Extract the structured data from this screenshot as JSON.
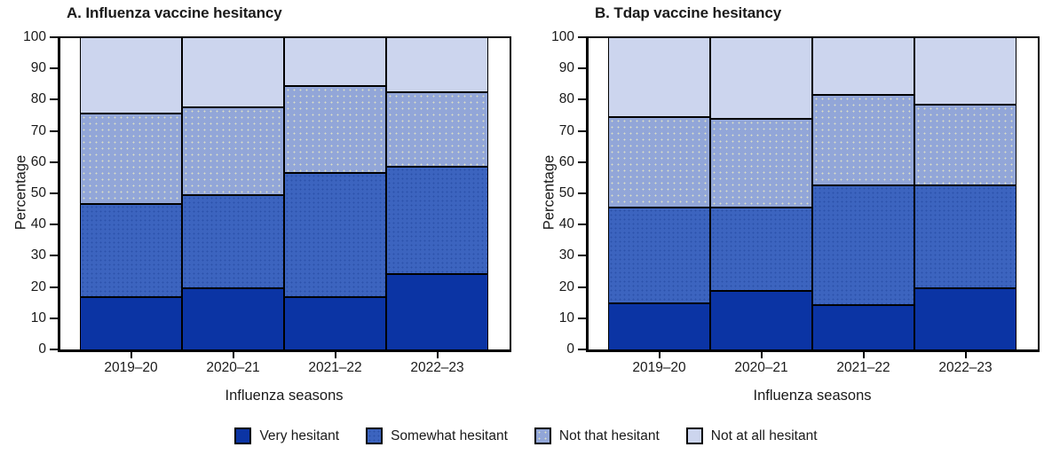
{
  "figure": {
    "background": "#ffffff",
    "axis_color": "#000000",
    "text_color": "#1a1a1a"
  },
  "chart_data": [
    {
      "type": "bar",
      "stacked": true,
      "panel": "A",
      "title": "A. Influenza vaccine hesitancy",
      "xlabel": "Influenza seasons",
      "ylabel": "Percentage",
      "ylim": [
        0,
        100
      ],
      "yticks": [
        0,
        10,
        20,
        30,
        40,
        50,
        60,
        70,
        80,
        90,
        100
      ],
      "grid": false,
      "categories": [
        "2019–20",
        "2020–21",
        "2021–22",
        "2022–23"
      ],
      "series": [
        {
          "name": "Very hesitant",
          "color": "#0b34a4",
          "dot_color": null,
          "dot_size": null,
          "values": [
            17,
            20,
            17,
            24.5
          ]
        },
        {
          "name": "Somewhat hesitant",
          "color": "#3c64bf",
          "dot_color": "#2c52ab",
          "dot_size": "5px 5px",
          "values": [
            30,
            30,
            40,
            34.5
          ]
        },
        {
          "name": "Not that hesitant",
          "color": "#92a6d8",
          "dot_color": "#dbdfc6",
          "dot_size": "7px 7px",
          "values": [
            29,
            28,
            28,
            24
          ]
        },
        {
          "name": "Not at all hesitant",
          "color": "#ccd5ee",
          "dot_color": null,
          "dot_size": null,
          "values": [
            24,
            22,
            15,
            17
          ]
        }
      ]
    },
    {
      "type": "bar",
      "stacked": true,
      "panel": "B",
      "title": "B. Tdap vaccine hesitancy",
      "xlabel": "Influenza seasons",
      "ylabel": "Percentage",
      "ylim": [
        0,
        100
      ],
      "yticks": [
        0,
        10,
        20,
        30,
        40,
        50,
        60,
        70,
        80,
        90,
        100
      ],
      "grid": false,
      "categories": [
        "2019–20",
        "2020–21",
        "2021–22",
        "2022–23"
      ],
      "series": [
        {
          "name": "Very hesitant",
          "color": "#0b34a4",
          "dot_color": null,
          "dot_size": null,
          "values": [
            15,
            19,
            14.5,
            20
          ]
        },
        {
          "name": "Somewhat hesitant",
          "color": "#3c64bf",
          "dot_color": "#2c52ab",
          "dot_size": "5px 5px",
          "values": [
            31,
            27,
            38.5,
            33
          ]
        },
        {
          "name": "Not that hesitant",
          "color": "#92a6d8",
          "dot_color": "#dbdfc6",
          "dot_size": "7px 7px",
          "values": [
            29,
            28.5,
            29,
            26
          ]
        },
        {
          "name": "Not at all hesitant",
          "color": "#ccd5ee",
          "dot_color": null,
          "dot_size": null,
          "values": [
            25,
            25.5,
            18,
            21
          ]
        }
      ]
    }
  ],
  "legend": {
    "position": "bottom-center",
    "items": [
      {
        "label": "Very hesitant",
        "color": "#0b34a4",
        "dot_color": null,
        "dot_size": null
      },
      {
        "label": "Somewhat hesitant",
        "color": "#3c64bf",
        "dot_color": "#2c52ab",
        "dot_size": "5px 5px"
      },
      {
        "label": "Not that hesitant",
        "color": "#92a6d8",
        "dot_color": "#dbdfc6",
        "dot_size": "7px 7px"
      },
      {
        "label": "Not at all hesitant",
        "color": "#ccd5ee",
        "dot_color": null,
        "dot_size": null
      }
    ]
  }
}
